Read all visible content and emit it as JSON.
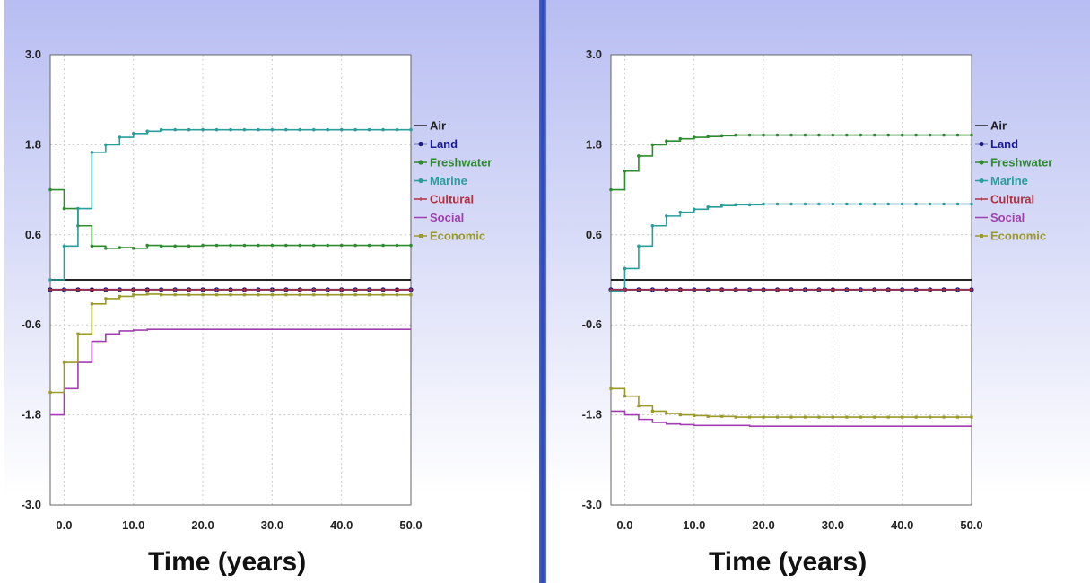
{
  "chart_data": [
    {
      "type": "line",
      "xlabel": "Time (years)",
      "xlim": [
        -2,
        50
      ],
      "ylim": [
        -3.0,
        3.0
      ],
      "x_ticks": [
        "0.0",
        "10.0",
        "20.0",
        "30.0",
        "40.0",
        "50.0"
      ],
      "y_ticks": [
        "3.0",
        "1.8",
        "0.6",
        "-0.6",
        "-1.8",
        "-3.0"
      ],
      "grid": true,
      "legend_position": "right",
      "x": [
        -2,
        0,
        2,
        4,
        6,
        8,
        10,
        12,
        14,
        16,
        18,
        20,
        22,
        24,
        26,
        28,
        30,
        32,
        34,
        36,
        38,
        40,
        42,
        44,
        46,
        48,
        50
      ],
      "series": [
        {
          "name": "Air",
          "color": "#222222",
          "marker": "line",
          "values": [
            0.0,
            0.0,
            0.0,
            0.0,
            0.0,
            0.0,
            0.0,
            0.0,
            0.0,
            0.0,
            0.0,
            0.0,
            0.0,
            0.0,
            0.0,
            0.0,
            0.0,
            0.0,
            0.0,
            0.0,
            0.0,
            0.0,
            0.0,
            0.0,
            0.0,
            0.0,
            0.0
          ]
        },
        {
          "name": "Land",
          "color": "#1a1a7a",
          "marker": "dot",
          "values": [
            -0.13,
            -0.13,
            -0.13,
            -0.13,
            -0.13,
            -0.13,
            -0.13,
            -0.13,
            -0.13,
            -0.13,
            -0.13,
            -0.13,
            -0.13,
            -0.13,
            -0.13,
            -0.13,
            -0.13,
            -0.13,
            -0.13,
            -0.13,
            -0.13,
            -0.13,
            -0.13,
            -0.13,
            -0.13,
            -0.13,
            -0.13
          ]
        },
        {
          "name": "Freshwater",
          "color": "#2e8b2e",
          "marker": "dot",
          "values": [
            1.2,
            0.95,
            0.72,
            0.45,
            0.42,
            0.43,
            0.42,
            0.46,
            0.45,
            0.45,
            0.45,
            0.46,
            0.46,
            0.46,
            0.46,
            0.46,
            0.46,
            0.46,
            0.46,
            0.46,
            0.46,
            0.46,
            0.46,
            0.46,
            0.46,
            0.46,
            0.46
          ]
        },
        {
          "name": "Marine",
          "color": "#2a9d9d",
          "marker": "dot",
          "values": [
            0.0,
            0.45,
            0.95,
            1.7,
            1.8,
            1.9,
            1.95,
            1.98,
            2.0,
            2.0,
            2.0,
            2.0,
            2.0,
            2.0,
            2.0,
            2.0,
            2.0,
            2.0,
            2.0,
            2.0,
            2.0,
            2.0,
            2.0,
            2.0,
            2.0,
            2.0,
            2.0
          ]
        },
        {
          "name": "Cultural",
          "color": "#b03040",
          "marker": "plus",
          "values": [
            -0.13,
            -0.13,
            -0.13,
            -0.13,
            -0.13,
            -0.13,
            -0.13,
            -0.13,
            -0.13,
            -0.13,
            -0.13,
            -0.13,
            -0.13,
            -0.13,
            -0.13,
            -0.13,
            -0.13,
            -0.13,
            -0.13,
            -0.13,
            -0.13,
            -0.13,
            -0.13,
            -0.13,
            -0.13,
            -0.13,
            -0.13
          ]
        },
        {
          "name": "Social",
          "color": "#a040b0",
          "marker": "line",
          "values": [
            -1.8,
            -1.45,
            -1.1,
            -0.82,
            -0.72,
            -0.68,
            -0.67,
            -0.66,
            -0.66,
            -0.66,
            -0.66,
            -0.66,
            -0.66,
            -0.66,
            -0.66,
            -0.66,
            -0.66,
            -0.66,
            -0.66,
            -0.66,
            -0.66,
            -0.66,
            -0.66,
            -0.66,
            -0.66,
            -0.66,
            -0.66
          ]
        },
        {
          "name": "Economic",
          "color": "#9a9a2a",
          "marker": "square",
          "values": [
            -1.5,
            -1.1,
            -0.72,
            -0.32,
            -0.25,
            -0.22,
            -0.2,
            -0.19,
            -0.2,
            -0.2,
            -0.2,
            -0.2,
            -0.2,
            -0.2,
            -0.2,
            -0.2,
            -0.2,
            -0.2,
            -0.2,
            -0.2,
            -0.2,
            -0.2,
            -0.2,
            -0.2,
            -0.2,
            -0.2,
            -0.2
          ]
        }
      ]
    },
    {
      "type": "line",
      "xlabel": "Time (years)",
      "xlim": [
        -2,
        50
      ],
      "ylim": [
        -3.0,
        3.0
      ],
      "x_ticks": [
        "0.0",
        "10.0",
        "20.0",
        "30.0",
        "40.0",
        "50.0"
      ],
      "y_ticks": [
        "3.0",
        "1.8",
        "0.6",
        "-0.6",
        "-1.8",
        "-3.0"
      ],
      "grid": true,
      "legend_position": "right",
      "x": [
        -2,
        0,
        2,
        4,
        6,
        8,
        10,
        12,
        14,
        16,
        18,
        20,
        22,
        24,
        26,
        28,
        30,
        32,
        34,
        36,
        38,
        40,
        42,
        44,
        46,
        48,
        50
      ],
      "series": [
        {
          "name": "Air",
          "color": "#222222",
          "marker": "line",
          "values": [
            0.0,
            0.0,
            0.0,
            0.0,
            0.0,
            0.0,
            0.0,
            0.0,
            0.0,
            0.0,
            0.0,
            0.0,
            0.0,
            0.0,
            0.0,
            0.0,
            0.0,
            0.0,
            0.0,
            0.0,
            0.0,
            0.0,
            0.0,
            0.0,
            0.0,
            0.0,
            0.0
          ]
        },
        {
          "name": "Land",
          "color": "#1a1a7a",
          "marker": "dot",
          "values": [
            -0.13,
            -0.13,
            -0.13,
            -0.13,
            -0.13,
            -0.13,
            -0.13,
            -0.13,
            -0.13,
            -0.13,
            -0.13,
            -0.13,
            -0.13,
            -0.13,
            -0.13,
            -0.13,
            -0.13,
            -0.13,
            -0.13,
            -0.13,
            -0.13,
            -0.13,
            -0.13,
            -0.13,
            -0.13,
            -0.13,
            -0.13
          ]
        },
        {
          "name": "Freshwater",
          "color": "#2e8b2e",
          "marker": "dot",
          "values": [
            1.2,
            1.45,
            1.65,
            1.8,
            1.85,
            1.88,
            1.9,
            1.91,
            1.92,
            1.93,
            1.93,
            1.93,
            1.93,
            1.93,
            1.93,
            1.93,
            1.93,
            1.93,
            1.93,
            1.93,
            1.93,
            1.93,
            1.93,
            1.93,
            1.93,
            1.93,
            1.93
          ]
        },
        {
          "name": "Marine",
          "color": "#2a9d9d",
          "marker": "dot",
          "values": [
            -0.15,
            0.15,
            0.45,
            0.72,
            0.85,
            0.9,
            0.94,
            0.97,
            0.99,
            1.0,
            1.0,
            1.01,
            1.01,
            1.01,
            1.01,
            1.01,
            1.01,
            1.01,
            1.01,
            1.01,
            1.01,
            1.01,
            1.01,
            1.01,
            1.01,
            1.01,
            1.01
          ]
        },
        {
          "name": "Cultural",
          "color": "#b03040",
          "marker": "plus",
          "values": [
            -0.13,
            -0.13,
            -0.13,
            -0.13,
            -0.13,
            -0.13,
            -0.13,
            -0.13,
            -0.13,
            -0.13,
            -0.13,
            -0.13,
            -0.13,
            -0.13,
            -0.13,
            -0.13,
            -0.13,
            -0.13,
            -0.13,
            -0.13,
            -0.13,
            -0.13,
            -0.13,
            -0.13,
            -0.13,
            -0.13,
            -0.13
          ]
        },
        {
          "name": "Social",
          "color": "#a040b0",
          "marker": "line",
          "values": [
            -1.75,
            -1.8,
            -1.86,
            -1.9,
            -1.92,
            -1.93,
            -1.94,
            -1.94,
            -1.94,
            -1.94,
            -1.95,
            -1.95,
            -1.95,
            -1.95,
            -1.95,
            -1.95,
            -1.95,
            -1.95,
            -1.95,
            -1.95,
            -1.95,
            -1.95,
            -1.95,
            -1.95,
            -1.95,
            -1.95,
            -1.95
          ]
        },
        {
          "name": "Economic",
          "color": "#9a9a2a",
          "marker": "square",
          "values": [
            -1.45,
            -1.55,
            -1.68,
            -1.75,
            -1.78,
            -1.8,
            -1.81,
            -1.82,
            -1.82,
            -1.83,
            -1.83,
            -1.83,
            -1.83,
            -1.83,
            -1.83,
            -1.83,
            -1.83,
            -1.83,
            -1.83,
            -1.83,
            -1.83,
            -1.83,
            -1.83,
            -1.83,
            -1.83,
            -1.83,
            -1.83
          ]
        }
      ]
    }
  ]
}
